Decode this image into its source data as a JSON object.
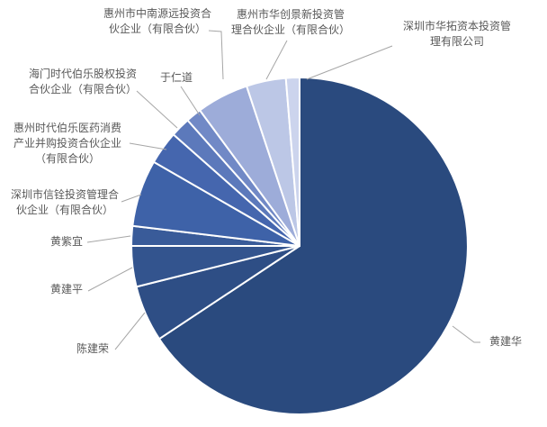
{
  "chart_data": {
    "type": "pie",
    "title": "",
    "legend": "none",
    "background": "#FFFFFF",
    "label_color": "#595959",
    "leader_line_color": "#A6A6A6",
    "slice_border_color": "#FFFFFF",
    "start_angle_deg": 0,
    "direction": "clockwise",
    "value_note": "percent values estimated from slice angles; chart shows no numeric data labels",
    "points": [
      {
        "label": "黄建华",
        "value": 65.7,
        "lines": [
          "黄建华"
        ]
      },
      {
        "label": "陈建荣",
        "value": 5.4,
        "lines": [
          "陈建荣"
        ]
      },
      {
        "label": "黄建平",
        "value": 3.9,
        "lines": [
          "黄建平"
        ]
      },
      {
        "label": "黄紫宜",
        "value": 1.9,
        "lines": [
          "黄紫宜"
        ]
      },
      {
        "label": "深圳市信铨投资管理合伙企业（有限合伙）",
        "value": 6.4,
        "lines": [
          "深圳市信铨投资管理合",
          "伙企业（有限合伙）"
        ]
      },
      {
        "label": "惠州时代伯乐医药消费产业并购投资合伙企业（有限合伙）",
        "value": 3.2,
        "lines": [
          "惠州时代伯乐医药消费",
          "产业并购投资合伙企业",
          "（有限合伙）"
        ]
      },
      {
        "label": "海门时代伯乐股权投资合伙企业（有限合伙）",
        "value": 1.9,
        "lines": [
          "海门时代伯乐股权投资",
          "合伙企业（有限合伙）"
        ]
      },
      {
        "label": "于仁道",
        "value": 1.5,
        "lines": [
          "于仁道"
        ]
      },
      {
        "label": "惠州市中南源远投资合伙企业（有限合伙）",
        "value": 5.0,
        "lines": [
          "惠州市中南源远投资合",
          "伙企业（有限合伙）"
        ]
      },
      {
        "label": "惠州市华创景新投资管理合伙企业（有限合伙）",
        "value": 3.8,
        "lines": [
          "惠州市华创景新投资管",
          "理合伙企业（有限合伙）"
        ]
      },
      {
        "label": "深圳市华拓资本投资管理有限公司",
        "value": 1.3,
        "lines": [
          "深圳市华拓资本投资管",
          "理有限公司"
        ]
      }
    ],
    "colors": [
      "#2A4A7E",
      "#2E4E85",
      "#33548E",
      "#395B99",
      "#3E62A8",
      "#4566AE",
      "#5C79BB",
      "#7189C6",
      "#9DACD9",
      "#BCC7E6",
      "#CCD4ED"
    ]
  }
}
